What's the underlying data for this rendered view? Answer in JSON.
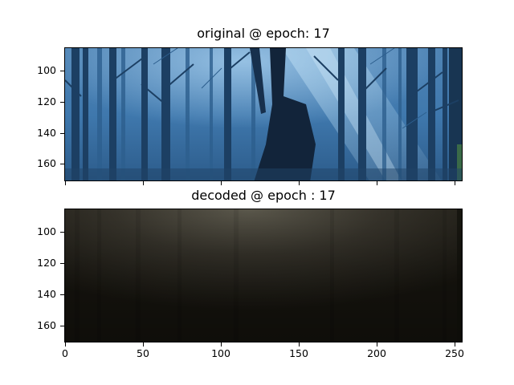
{
  "panels": [
    {
      "title": "original @ epoch: 17",
      "image": "forest-scene",
      "ytick_labels": [
        "100",
        "120",
        "140",
        "160"
      ]
    },
    {
      "title": "decoded @ epoch : 17",
      "image": "blurred-dark-reconstruction",
      "ytick_labels": [
        "100",
        "120",
        "140",
        "160"
      ]
    }
  ],
  "xtick_labels": [
    "0",
    "50",
    "100",
    "150",
    "200",
    "250"
  ]
}
